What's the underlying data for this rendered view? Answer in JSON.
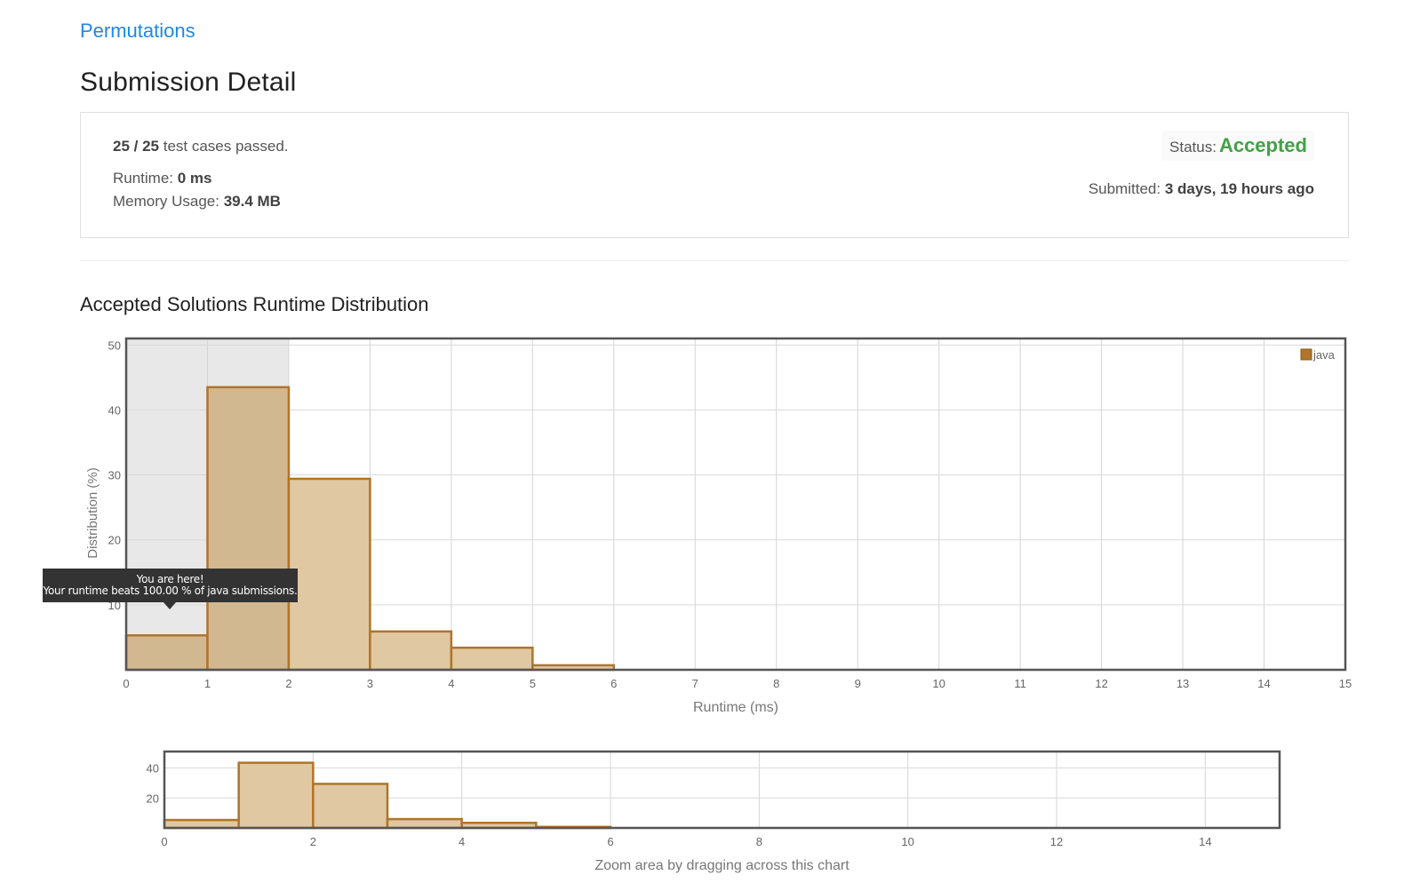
{
  "problem": {
    "title": "Permutations"
  },
  "page": {
    "title": "Submission Detail"
  },
  "detail": {
    "tests_passed": "25 / 25",
    "tests_suffix": " test cases passed.",
    "runtime_label": "Runtime: ",
    "runtime_value": "0 ms",
    "memory_label": "Memory Usage: ",
    "memory_value": "39.4 MB",
    "status_label": "Status:",
    "status_value": "Accepted",
    "submitted_label": "Submitted: ",
    "submitted_value": "3 days, 19 hours ago"
  },
  "colors": {
    "accepted": "#43a047",
    "link": "#1e88e5",
    "bar_fill": "#e0c8a2",
    "bar_stroke": "#b0742a",
    "highlight": "#e8e8e8"
  },
  "runtime_section": {
    "title": "Accepted Solutions Runtime Distribution"
  },
  "tooltip": {
    "line1": "You are here!",
    "line2": "Your runtime beats 100.00 % of java submissions."
  },
  "zoom_hint": "Zoom area by dragging across this chart",
  "chart_data": [
    {
      "type": "bar",
      "title": "Accepted Solutions Runtime Distribution",
      "xlabel": "Runtime (ms)",
      "ylabel": "Distribution (%)",
      "xlim": [
        0,
        15
      ],
      "ylim": [
        0,
        51
      ],
      "x_ticks": [
        0,
        1,
        2,
        3,
        4,
        5,
        6,
        7,
        8,
        9,
        10,
        11,
        12,
        13,
        14,
        15
      ],
      "y_ticks": [
        10,
        20,
        30,
        40,
        50
      ],
      "grid": true,
      "legend": "top-right",
      "highlight_range": [
        0,
        2
      ],
      "series": [
        {
          "name": "java",
          "bins": [
            [
              0,
              1
            ],
            [
              1,
              2
            ],
            [
              2,
              3
            ],
            [
              3,
              4
            ],
            [
              4,
              5
            ],
            [
              5,
              6
            ]
          ],
          "values": [
            5.3,
            43.5,
            29.4,
            5.9,
            3.4,
            0.7
          ]
        }
      ]
    },
    {
      "type": "bar",
      "title": "",
      "xlabel": "Zoom area by dragging across this chart",
      "xlim": [
        0,
        15
      ],
      "ylim": [
        0,
        51
      ],
      "x_ticks": [
        0,
        2,
        4,
        6,
        8,
        10,
        12,
        14
      ],
      "y_ticks": [
        20,
        40
      ],
      "grid": true,
      "series": [
        {
          "name": "",
          "bins": [
            [
              0,
              1
            ],
            [
              1,
              2
            ],
            [
              2,
              3
            ],
            [
              3,
              4
            ],
            [
              4,
              5
            ],
            [
              5,
              6
            ]
          ],
          "values": [
            5.3,
            43.5,
            29.4,
            5.9,
            3.4,
            0.7
          ]
        }
      ]
    }
  ]
}
